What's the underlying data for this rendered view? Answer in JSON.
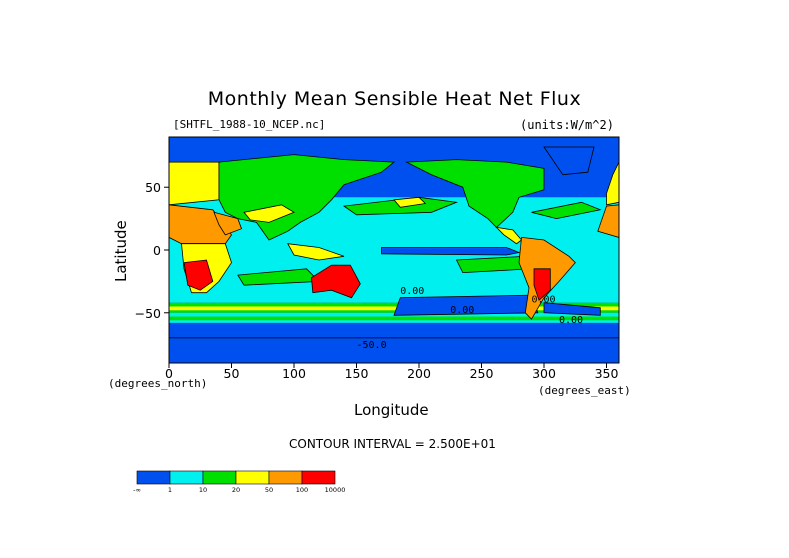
{
  "chart_data": {
    "type": "heatmap",
    "title": "Monthly Mean Sensible Heat Net Flux",
    "file_label": "[SHTFL_1988-10_NCEP.nc]",
    "units_label": "(units:W/m^2)",
    "xlabel": "Longitude",
    "ylabel": "Latitude",
    "x_unit_label": "(degrees_east)",
    "y_unit_label": "(degrees_north)",
    "xlim": [
      0,
      360
    ],
    "ylim": [
      -90,
      90
    ],
    "x_ticks": [
      "0",
      "50",
      "100",
      "150",
      "200",
      "250",
      "300",
      "350"
    ],
    "y_ticks": [
      "50",
      "0",
      "−50"
    ],
    "contour_interval_text": "CONTOUR INTERVAL = 2.500E+01",
    "contour_labels": [
      "0.00",
      "0.00",
      "0.00",
      "-50.0",
      "0.00"
    ],
    "colorbar": {
      "colors": [
        "#0050f0",
        "#00f0f0",
        "#00e000",
        "#ffff00",
        "#ff9900",
        "#ff0000"
      ],
      "tick_labels": [
        "-∞",
        "1",
        "10",
        "20",
        "50",
        "100",
        "10000"
      ]
    }
  }
}
